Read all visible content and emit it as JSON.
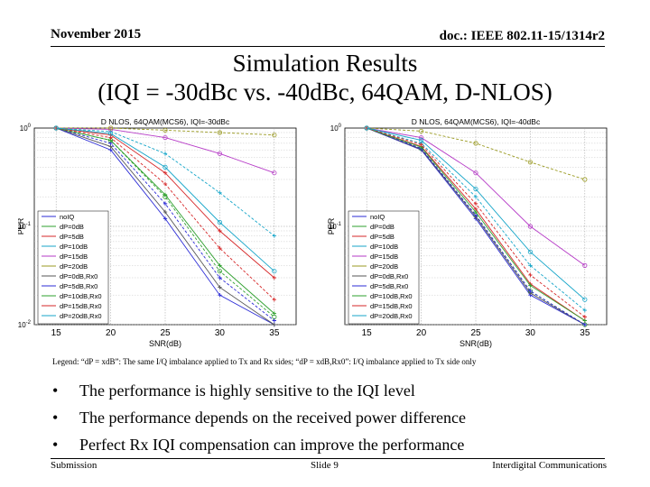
{
  "header": {
    "date": "November 2015",
    "doc": "doc.: IEEE 802.11-15/1314r2"
  },
  "title": {
    "line1": "Simulation Results",
    "line2": "(IQI = -30dBc vs. -40dBc, 64QAM, D-NLOS)"
  },
  "legend_note": "Legend: “dP = xdB”: The same I/Q imbalance applied to Tx and Rx sides; “dP = xdB,Rx0”: I/Q imbalance applied to Tx side only",
  "bullets": [
    "The performance is highly sensitive to the IQI level",
    "The performance depends on the received power difference",
    "Perfect Rx IQI compensation can improve the performance"
  ],
  "footer": {
    "left": "Submission",
    "center": "Slide 9",
    "right": "Interdigital Communications"
  },
  "chart_data": [
    {
      "type": "line",
      "title": "D NLOS, 64QAM(MCS6), IQI=-30dBc",
      "xlabel": "SNR(dB)",
      "ylabel": "PER",
      "xlim": [
        13,
        37
      ],
      "ylim": [
        0.01,
        1
      ],
      "yscale": "log",
      "xticks": [
        15,
        20,
        25,
        30,
        35
      ],
      "ytick_labels": [
        "10^0",
        "10^-1",
        "10^-2"
      ],
      "grid": true,
      "legend_position": "left",
      "series": [
        {
          "name": "noIQ",
          "color": "#2b2bd6",
          "x": [
            15,
            20,
            25,
            30,
            35
          ],
          "y": [
            1,
            0.6,
            0.12,
            0.02,
            0.01
          ]
        },
        {
          "name": "dP=0dB",
          "color": "#2ea02e",
          "x": [
            15,
            20,
            25,
            30,
            35
          ],
          "y": [
            1,
            0.75,
            0.2,
            0.035,
            0.012
          ]
        },
        {
          "name": "dP=5dB",
          "color": "#d62728",
          "x": [
            15,
            20,
            25,
            30,
            35
          ],
          "y": [
            1,
            0.85,
            0.35,
            0.09,
            0.03
          ]
        },
        {
          "name": "dP=10dB",
          "color": "#17a6c9",
          "x": [
            15,
            20,
            25,
            30,
            35
          ],
          "y": [
            1,
            0.92,
            0.55,
            0.22,
            0.08
          ]
        },
        {
          "name": "dP=15dB",
          "color": "#b63ac7",
          "x": [
            15,
            20,
            25,
            30,
            35
          ],
          "y": [
            1,
            0.97,
            0.8,
            0.55,
            0.35
          ]
        },
        {
          "name": "dP=20dB",
          "color": "#9a9a20",
          "x": [
            15,
            20,
            25,
            30,
            35
          ],
          "y": [
            1,
            1,
            0.95,
            0.9,
            0.85
          ]
        },
        {
          "name": "dP=0dB,Rx0",
          "color": "#555555",
          "x": [
            15,
            20,
            25,
            30,
            35
          ],
          "y": [
            1,
            0.65,
            0.14,
            0.024,
            0.01
          ]
        },
        {
          "name": "dP=5dB,Rx0",
          "color": "#2b2bd6",
          "x": [
            15,
            20,
            25,
            30,
            35
          ],
          "y": [
            1,
            0.7,
            0.17,
            0.03,
            0.011
          ]
        },
        {
          "name": "dP=10dB,Rx0",
          "color": "#2ea02e",
          "x": [
            15,
            20,
            25,
            30,
            35
          ],
          "y": [
            1,
            0.75,
            0.21,
            0.04,
            0.013
          ]
        },
        {
          "name": "dP=15dB,Rx0",
          "color": "#d62728",
          "x": [
            15,
            20,
            25,
            30,
            35
          ],
          "y": [
            1,
            0.8,
            0.27,
            0.06,
            0.018
          ]
        },
        {
          "name": "dP=20dB,Rx0",
          "color": "#17a6c9",
          "x": [
            15,
            20,
            25,
            30,
            35
          ],
          "y": [
            1,
            0.88,
            0.4,
            0.11,
            0.035
          ]
        }
      ]
    },
    {
      "type": "line",
      "title": "D NLOS, 64QAM(MCS6), IQI=-40dBc",
      "xlabel": "SNR(dB)",
      "ylabel": "PER",
      "xlim": [
        13,
        37
      ],
      "ylim": [
        0.01,
        1
      ],
      "yscale": "log",
      "xticks": [
        15,
        20,
        25,
        30,
        35
      ],
      "ytick_labels": [
        "10^0",
        "10^-1"
      ],
      "grid": true,
      "legend_position": "left",
      "series": [
        {
          "name": "noIQ",
          "color": "#2b2bd6",
          "x": [
            15,
            20,
            25,
            30,
            35
          ],
          "y": [
            1,
            0.6,
            0.12,
            0.02,
            0.01
          ]
        },
        {
          "name": "dP=0dB",
          "color": "#2ea02e",
          "x": [
            15,
            20,
            25,
            30,
            35
          ],
          "y": [
            1,
            0.62,
            0.13,
            0.022,
            0.01
          ]
        },
        {
          "name": "dP=5dB",
          "color": "#d62728",
          "x": [
            15,
            20,
            25,
            30,
            35
          ],
          "y": [
            1,
            0.65,
            0.15,
            0.026,
            0.011
          ]
        },
        {
          "name": "dP=10dB",
          "color": "#17a6c9",
          "x": [
            15,
            20,
            25,
            30,
            35
          ],
          "y": [
            1,
            0.7,
            0.2,
            0.04,
            0.014
          ]
        },
        {
          "name": "dP=15dB",
          "color": "#b63ac7",
          "x": [
            15,
            20,
            25,
            30,
            35
          ],
          "y": [
            1,
            0.8,
            0.35,
            0.1,
            0.04
          ]
        },
        {
          "name": "dP=20dB",
          "color": "#9a9a20",
          "x": [
            15,
            20,
            25,
            30,
            35
          ],
          "y": [
            1,
            0.93,
            0.7,
            0.45,
            0.3
          ]
        },
        {
          "name": "dP=0dB,Rx0",
          "color": "#555555",
          "x": [
            15,
            20,
            25,
            30,
            35
          ],
          "y": [
            1,
            0.61,
            0.125,
            0.021,
            0.01
          ]
        },
        {
          "name": "dP=5dB,Rx0",
          "color": "#2b2bd6",
          "x": [
            15,
            20,
            25,
            30,
            35
          ],
          "y": [
            1,
            0.62,
            0.13,
            0.022,
            0.01
          ]
        },
        {
          "name": "dP=10dB,Rx0",
          "color": "#2ea02e",
          "x": [
            15,
            20,
            25,
            30,
            35
          ],
          "y": [
            1,
            0.64,
            0.14,
            0.025,
            0.011
          ]
        },
        {
          "name": "dP=15dB,Rx0",
          "color": "#d62728",
          "x": [
            15,
            20,
            25,
            30,
            35
          ],
          "y": [
            1,
            0.68,
            0.17,
            0.032,
            0.012
          ]
        },
        {
          "name": "dP=20dB,Rx0",
          "color": "#17a6c9",
          "x": [
            15,
            20,
            25,
            30,
            35
          ],
          "y": [
            1,
            0.75,
            0.24,
            0.055,
            0.018
          ]
        }
      ]
    }
  ]
}
